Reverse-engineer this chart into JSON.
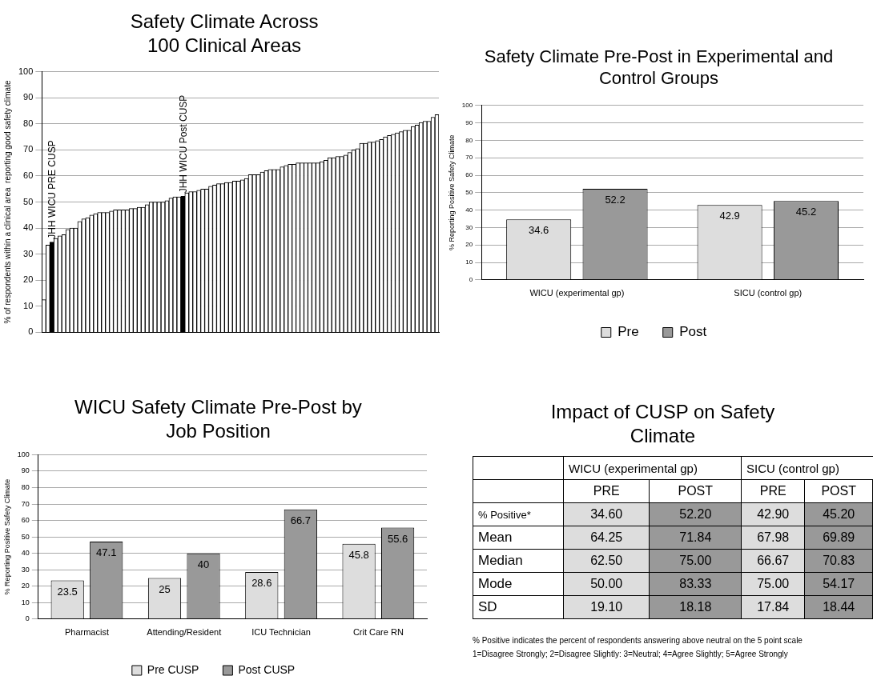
{
  "chart_data": [
    {
      "type": "bar",
      "title": "Safety Climate Across 100 Clinical Areas",
      "ylabel": "% of respondents within a clinical area  reporting good safety climate",
      "categories": [
        null,
        null,
        null,
        null,
        null,
        null,
        null,
        null,
        null,
        null,
        null,
        null,
        null,
        null,
        null,
        null,
        null,
        null,
        null,
        null,
        null,
        null,
        null,
        null,
        null,
        null,
        null,
        null,
        null,
        null,
        null,
        null,
        null,
        null,
        null,
        null,
        null,
        null,
        null,
        null,
        null,
        null,
        null,
        null,
        null,
        null,
        null,
        null,
        null,
        null,
        null,
        null,
        null,
        null,
        null,
        null,
        null,
        null,
        null,
        null,
        null,
        null,
        null,
        null,
        null,
        null,
        null,
        null,
        null,
        null,
        null,
        null,
        null,
        null,
        null,
        null,
        null,
        null,
        null,
        null,
        null,
        null,
        null,
        null,
        null,
        null,
        null,
        null,
        null,
        null,
        null,
        null,
        null,
        null,
        null,
        null,
        null,
        null,
        null,
        null
      ],
      "values": [
        12.5,
        33.5,
        34.6,
        36,
        37,
        37.5,
        39.5,
        40,
        40,
        42.5,
        43.5,
        44,
        45,
        45.5,
        46,
        46,
        46,
        46.5,
        47,
        47,
        47,
        47,
        47.5,
        47.5,
        48,
        48,
        49,
        50,
        50,
        50,
        50,
        50.5,
        51.5,
        52,
        52,
        52.2,
        53.5,
        54,
        54,
        54.5,
        55,
        55,
        56,
        56.5,
        57,
        57,
        57.5,
        57.5,
        58,
        58,
        58.5,
        59,
        60.5,
        60.5,
        60.5,
        61.5,
        62,
        62.5,
        62.5,
        62.5,
        63.5,
        64,
        64.5,
        64.5,
        65,
        65,
        65,
        65,
        65,
        65,
        65.5,
        66,
        67,
        67,
        67.5,
        67.5,
        68,
        69,
        70,
        70.5,
        72.5,
        72.5,
        73,
        73,
        73.5,
        74,
        75,
        75.5,
        76,
        76.5,
        77,
        77.5,
        77.5,
        79,
        79.5,
        80.5,
        81,
        81,
        82.5,
        83.5
      ],
      "colors": [
        "#ffffff",
        "#ffffff",
        "#000000",
        "#ffffff",
        "#ffffff",
        "#ffffff",
        "#ffffff",
        "#ffffff",
        "#ffffff",
        "#ffffff",
        "#ffffff",
        "#ffffff",
        "#ffffff",
        "#ffffff",
        "#ffffff",
        "#ffffff",
        "#ffffff",
        "#ffffff",
        "#ffffff",
        "#ffffff",
        "#ffffff",
        "#ffffff",
        "#ffffff",
        "#ffffff",
        "#ffffff",
        "#ffffff",
        "#ffffff",
        "#ffffff",
        "#ffffff",
        "#ffffff",
        "#ffffff",
        "#ffffff",
        "#ffffff",
        "#ffffff",
        "#ffffff",
        "#000000",
        "#ffffff",
        "#ffffff",
        "#ffffff",
        "#ffffff",
        "#ffffff",
        "#ffffff",
        "#ffffff",
        "#ffffff",
        "#ffffff",
        "#ffffff",
        "#ffffff",
        "#ffffff",
        "#ffffff",
        "#ffffff",
        "#ffffff",
        "#ffffff",
        "#ffffff",
        "#ffffff",
        "#ffffff",
        "#ffffff",
        "#ffffff",
        "#ffffff",
        "#ffffff",
        "#ffffff",
        "#ffffff",
        "#ffffff",
        "#ffffff",
        "#ffffff",
        "#ffffff",
        "#ffffff",
        "#ffffff",
        "#ffffff",
        "#ffffff",
        "#ffffff",
        "#ffffff",
        "#ffffff",
        "#ffffff",
        "#ffffff",
        "#ffffff",
        "#ffffff",
        "#ffffff",
        "#ffffff",
        "#ffffff",
        "#ffffff",
        "#ffffff",
        "#ffffff",
        "#ffffff",
        "#ffffff",
        "#ffffff",
        "#ffffff",
        "#ffffff",
        "#ffffff",
        "#ffffff",
        "#ffffff",
        "#ffffff",
        "#ffffff",
        "#ffffff",
        "#ffffff",
        "#ffffff",
        "#ffffff",
        "#ffffff",
        "#ffffff",
        "#ffffff",
        "#ffffff"
      ],
      "ylim": [
        0,
        100
      ],
      "yticks": [
        0,
        10,
        20,
        30,
        40,
        50,
        60,
        70,
        80,
        90,
        100
      ],
      "grid": "y",
      "tick_labels": "y",
      "annotations": [
        "JHH WICU PRE CUSP",
        "JHH WICU Post CUSP"
      ]
    },
    {
      "type": "bar",
      "title": "Safety Climate Pre-Post in Experimental and Control Groups",
      "ylabel": "% Reporting Positive Safety Climate",
      "categories": [
        "WICU (experimental gp)",
        "SICU (control gp)"
      ],
      "series": [
        {
          "name": "Pre",
          "color": "#dddddd",
          "values": [
            34.6,
            42.9
          ]
        },
        {
          "name": "Post",
          "color": "#999999",
          "values": [
            52.2,
            45.2
          ]
        }
      ],
      "ylim": [
        0,
        100
      ],
      "yticks": [
        0,
        10,
        20,
        30,
        40,
        50,
        60,
        70,
        80,
        90,
        100
      ],
      "grid": "y",
      "legend": "bottom",
      "data_labels": true
    },
    {
      "type": "bar",
      "title": "WICU Safety Climate Pre-Post by Job Position",
      "ylabel": "% Reporting Positive Safety Climate",
      "categories": [
        "Pharmacist",
        "Attending/Resident",
        "ICU Technician",
        "Crit Care RN"
      ],
      "series": [
        {
          "name": "Pre CUSP",
          "color": "#dddddd",
          "values": [
            23.5,
            25,
            28.6,
            45.8
          ]
        },
        {
          "name": "Post CUSP",
          "color": "#999999",
          "values": [
            47.1,
            40,
            66.7,
            55.6
          ]
        }
      ],
      "ylim": [
        0,
        100
      ],
      "yticks": [
        0,
        10,
        20,
        30,
        40,
        50,
        60,
        70,
        80,
        90,
        100
      ],
      "grid": "y",
      "legend": "bottom",
      "data_labels": true
    },
    {
      "type": "heatmap",
      "title": "Impact of CUSP on Safety Climate",
      "categories": [
        "PRE",
        "POST",
        "PRE",
        "POST"
      ],
      "y_categories": [
        "% Positive*",
        "Mean",
        "Median",
        "Mode",
        "SD"
      ],
      "cells": [
        [
          34.6,
          52.2,
          42.9,
          45.2
        ],
        [
          64.25,
          71.84,
          67.98,
          69.89
        ],
        [
          62.5,
          75,
          66.67,
          70.83
        ],
        [
          50,
          83.33,
          75,
          54.17
        ],
        [
          19.1,
          18.18,
          17.84,
          18.44
        ]
      ],
      "cell_labels": [
        [
          "34.60",
          "52.20",
          "42.90",
          "45.20"
        ],
        [
          "64.25",
          "71.84",
          "67.98",
          "69.89"
        ],
        [
          "62.50",
          "75.00",
          "66.67",
          "70.83"
        ],
        [
          "50.00",
          "83.33",
          "75.00",
          "54.17"
        ],
        [
          "19.10",
          "18.18",
          "17.84",
          "18.44"
        ]
      ],
      "annotations": [
        "WICU (experimental  gp)",
        "SICU (control  gp)",
        "% Positive indicates the percent of respondents answering above neutral on the 5 point scale",
        "1=Disagree Strongly; 2=Disagree Slightly: 3=Neutral; 4=Agree Slightly; 5=Agree Strongly"
      ]
    }
  ]
}
